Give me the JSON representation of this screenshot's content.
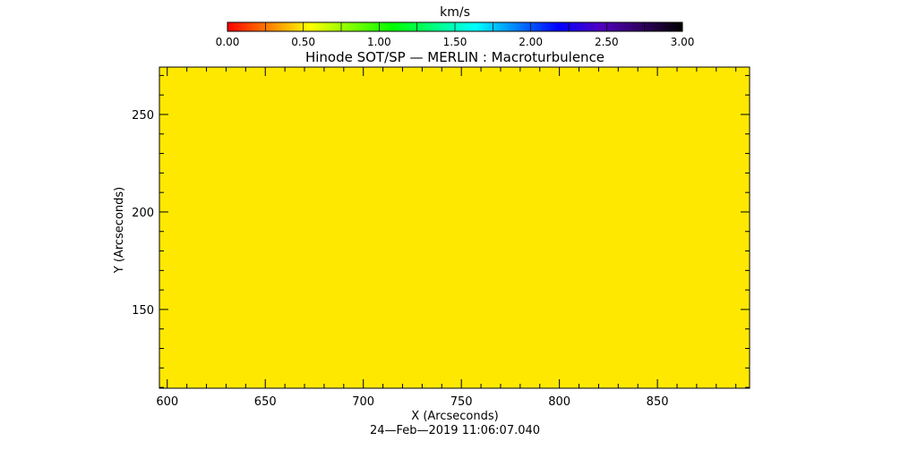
{
  "chart_data": {
    "type": "heatmap",
    "title": "Hinode SOT/SP — MERLIN : Macroturbulence",
    "xlabel": "X (Arcseconds)",
    "ylabel": "Y (Arcseconds)",
    "xlim": [
      596,
      897
    ],
    "ylim": [
      109.6,
      274.3
    ],
    "x_ticks": [
      600,
      650,
      700,
      750,
      800,
      850
    ],
    "y_ticks": [
      150,
      200,
      250
    ],
    "grid": false,
    "fill_color": "#ffe800",
    "value": 0.75,
    "footer": "24—Feb—2019 11:06:07.040",
    "colorbar": {
      "label": "km/s",
      "range": [
        0,
        3
      ],
      "tick_labels": [
        "0.00",
        "0.50",
        "1.00",
        "1.50",
        "2.00",
        "2.50",
        "3.00"
      ],
      "colors": [
        "#ff0000",
        "#ff8000",
        "#ffff00",
        "#80ff00",
        "#00ff00",
        "#00ff80",
        "#00ffff",
        "#0080ff",
        "#0000ff",
        "#5000c0",
        "#300060",
        "#000000"
      ]
    }
  }
}
